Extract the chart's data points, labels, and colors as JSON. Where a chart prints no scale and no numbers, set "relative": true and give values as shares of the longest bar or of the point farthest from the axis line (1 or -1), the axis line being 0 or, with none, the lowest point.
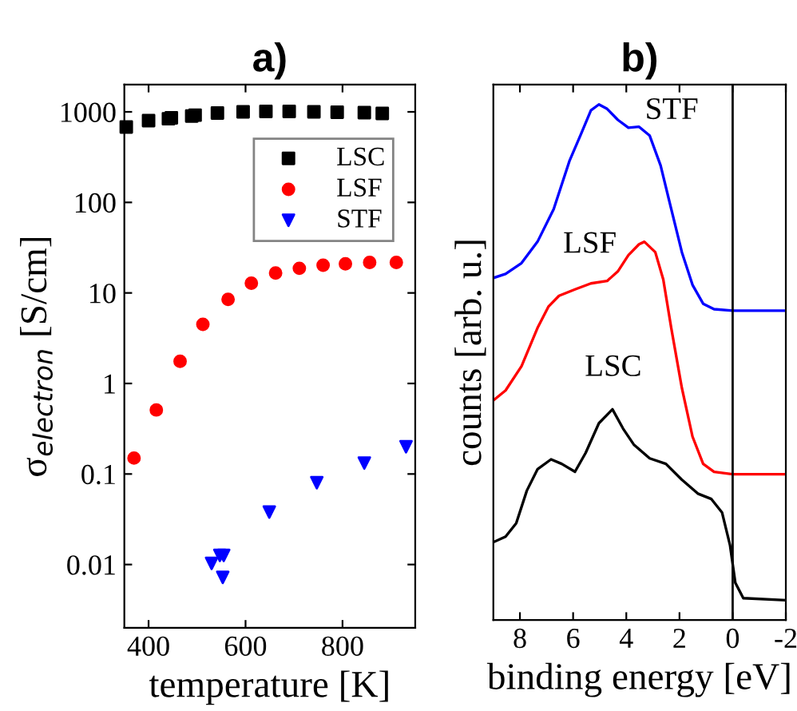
{
  "chart_data": [
    {
      "type": "scatter",
      "title": "a)",
      "xlabel": "temperature [K]",
      "ylabel": "σ$_{electron}$ [S/cm]",
      "log": "y",
      "xlim": [
        350,
        950
      ],
      "xticks": [
        400,
        600,
        800
      ],
      "ylim": [
        0.002,
        2000
      ],
      "yticks": [
        0.01,
        0.1,
        1,
        10,
        100,
        1000
      ],
      "legend": "top right",
      "grid": false,
      "series": [
        {
          "name": "LSC",
          "color": "#000000",
          "marker": "square",
          "x": [
            354,
            400,
            441,
            447,
            489,
            496,
            542,
            595,
            642,
            690,
            741,
            789,
            845,
            882
          ],
          "values": [
            680,
            800,
            840,
            860,
            900,
            920,
            970,
            1000,
            1010,
            1010,
            1000,
            990,
            980,
            960
          ]
        },
        {
          "name": "LSF",
          "color": "#ff0000",
          "marker": "circle",
          "x": [
            370,
            416,
            465,
            512,
            564,
            612,
            662,
            711,
            760,
            806,
            856,
            911
          ],
          "values": [
            0.15,
            0.51,
            1.76,
            4.5,
            8.5,
            12.8,
            16.6,
            18.7,
            20.2,
            21,
            21.7,
            21.7
          ]
        },
        {
          "name": "STF",
          "color": "#0000ff",
          "marker": "triangle",
          "x": [
            530,
            547,
            555,
            553,
            649,
            747,
            845,
            931
          ],
          "values": [
            0.0103,
            0.0126,
            0.0126,
            0.0072,
            0.038,
            0.08,
            0.132,
            0.2
          ]
        }
      ]
    },
    {
      "type": "line",
      "title": "b)",
      "xlabel": "binding energy [eV]",
      "ylabel": "counts [arb. u.]",
      "relative": true,
      "xlim": [
        9,
        -2
      ],
      "xticks": [
        8,
        6,
        4,
        2,
        0,
        {
          "value": -2,
          "label": "-2"
        }
      ],
      "tick_labels": "x",
      "grid": false,
      "ref_lines": [
        {
          "axis": "x",
          "value": 0,
          "color": "#000000"
        }
      ],
      "annotations": [
        "STF",
        "LSF",
        "LSC"
      ],
      "series": [
        {
          "color": "#0000ff",
          "x": [
            9.0,
            8.54,
            7.94,
            7.34,
            6.73,
            6.13,
            5.73,
            5.33,
            5.03,
            4.72,
            4.32,
            3.92,
            3.52,
            3.12,
            2.71,
            2.31,
            1.91,
            1.51,
            1.11,
            0.7,
            0,
            -2
          ],
          "values": [
            0.65,
            0.658,
            0.68,
            0.723,
            0.789,
            0.887,
            0.937,
            0.988,
            1,
            0.991,
            0.969,
            0.953,
            0.955,
            0.937,
            0.877,
            0.789,
            0.702,
            0.636,
            0.598,
            0.587,
            0.584,
            0.584
          ]
        },
        {
          "color": "#ff0000",
          "x": [
            9.0,
            8.54,
            7.94,
            7.34,
            6.93,
            6.53,
            5.93,
            5.33,
            4.72,
            4.32,
            3.92,
            3.52,
            3.32,
            2.91,
            2.61,
            2.31,
            1.91,
            1.51,
            1.11,
            0.7,
            0,
            -2
          ],
          "values": [
            0.403,
            0.423,
            0.472,
            0.549,
            0.592,
            0.614,
            0.627,
            0.639,
            0.644,
            0.663,
            0.696,
            0.718,
            0.723,
            0.702,
            0.647,
            0.549,
            0.428,
            0.33,
            0.275,
            0.259,
            0.254,
            0.254
          ]
        },
        {
          "color": "#000000",
          "x": [
            9.0,
            8.54,
            8.14,
            7.74,
            7.34,
            6.83,
            6.43,
            5.93,
            5.53,
            5.03,
            4.52,
            4.12,
            3.72,
            3.12,
            2.51,
            1.91,
            1.31,
            0.8,
            0.4,
            0.1,
            -0.1,
            -0.4,
            -2
          ],
          "values": [
            0.117,
            0.128,
            0.155,
            0.221,
            0.264,
            0.284,
            0.275,
            0.259,
            0.297,
            0.357,
            0.385,
            0.346,
            0.314,
            0.286,
            0.275,
            0.243,
            0.215,
            0.204,
            0.177,
            0.111,
            0.035,
            0.004,
            0
          ]
        }
      ]
    }
  ]
}
